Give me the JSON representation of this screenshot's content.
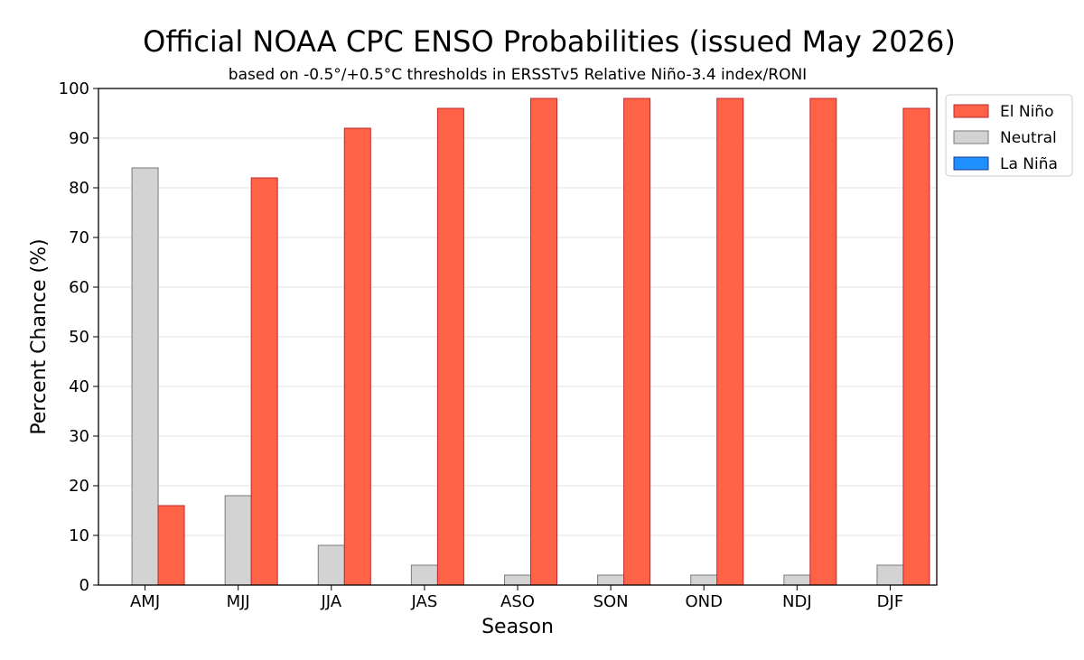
{
  "chart_data": {
    "type": "bar",
    "title": "Official NOAA CPC ENSO Probabilities (issued May 2026)",
    "subtitle": "based on -0.5°/+0.5°C thresholds in ERSSTv5 Relative Niño-3.4 index/RONI",
    "xlabel": "Season",
    "ylabel": "Percent Chance (%)",
    "ylim": [
      0,
      100
    ],
    "yticks": [
      0,
      10,
      20,
      30,
      40,
      50,
      60,
      70,
      80,
      90,
      100
    ],
    "grid": "horizontal",
    "legend_position": "outside-top-right",
    "categories": [
      "AMJ",
      "MJJ",
      "JJA",
      "JAS",
      "ASO",
      "SON",
      "OND",
      "NDJ",
      "DJF"
    ],
    "series": [
      {
        "name": "La Niña",
        "color": "#1e90ff",
        "edge": "#1b3b8f",
        "values": [
          0,
          0,
          0,
          0,
          0,
          0,
          0,
          0,
          0
        ]
      },
      {
        "name": "Neutral",
        "color": "#d3d3d3",
        "edge": "#7a7a7a",
        "values": [
          84,
          18,
          8,
          4,
          2,
          2,
          2,
          2,
          4
        ]
      },
      {
        "name": "El Niño",
        "color": "#ff6347",
        "edge": "#c1272d",
        "values": [
          16,
          82,
          92,
          96,
          98,
          98,
          98,
          98,
          96
        ]
      }
    ],
    "legend_order": [
      "El Niño",
      "Neutral",
      "La Niña"
    ]
  }
}
